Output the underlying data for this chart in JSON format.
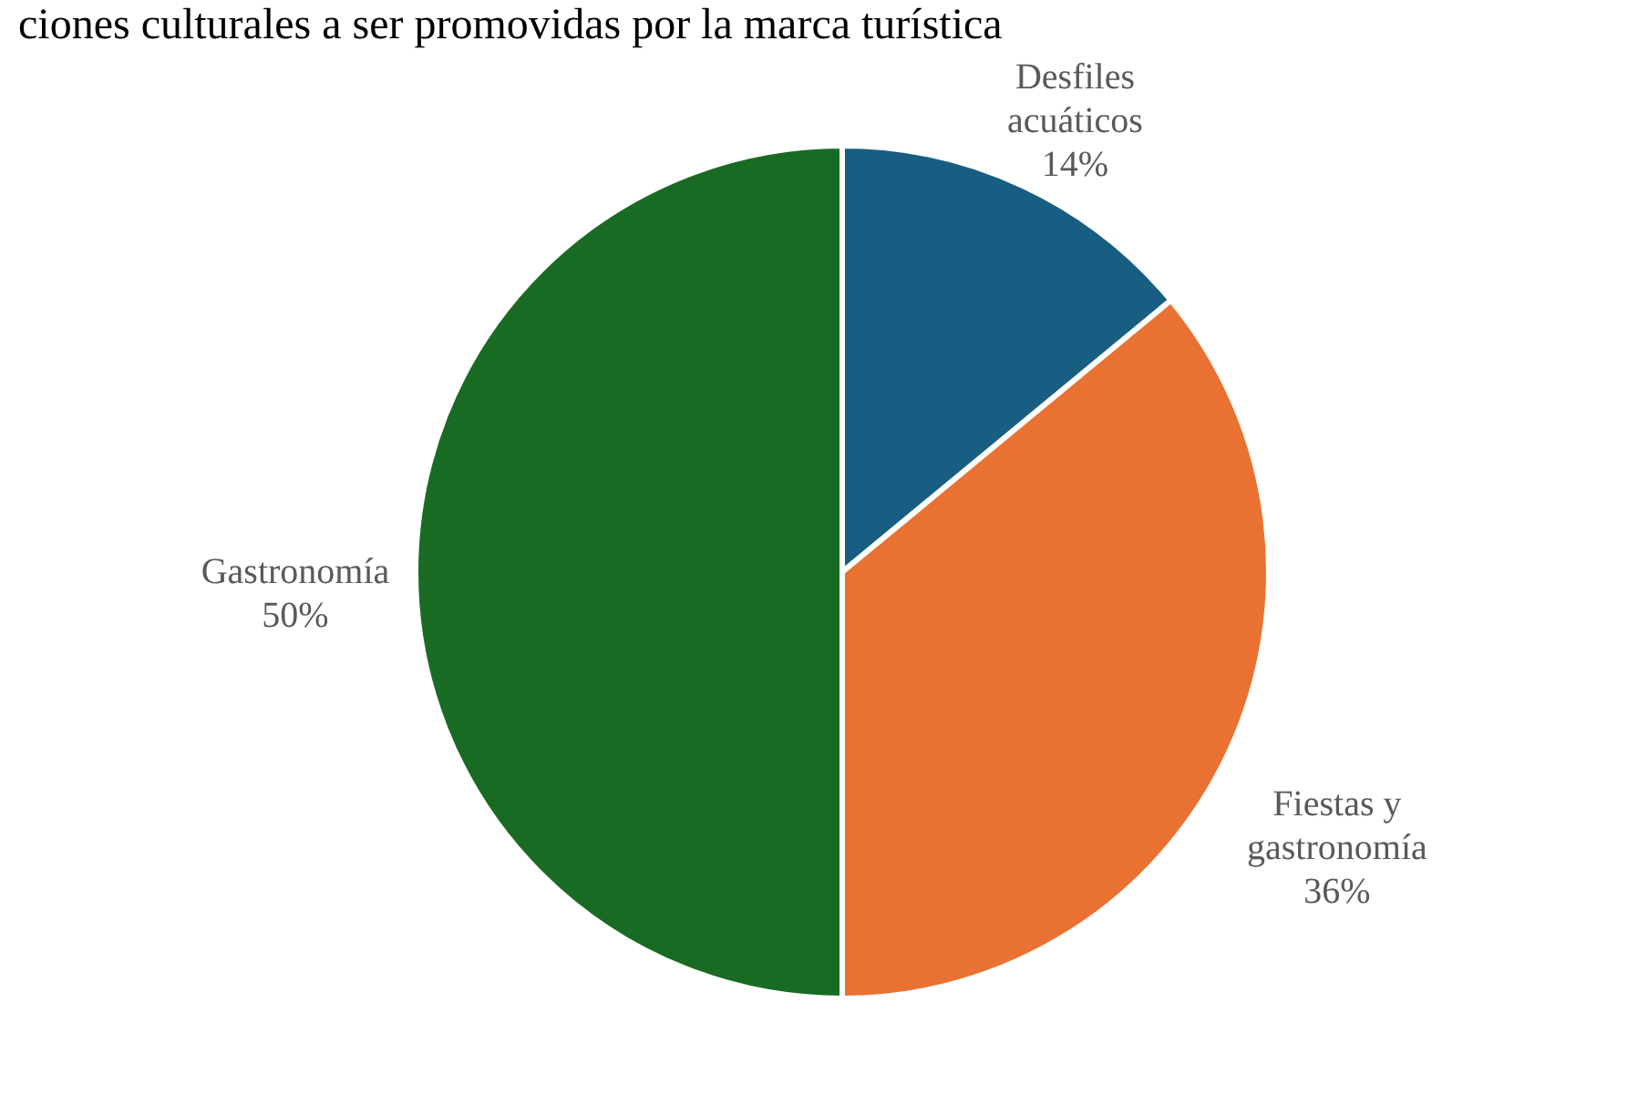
{
  "chart_data": {
    "type": "pie",
    "title": "ciones culturales a ser promovidas por la marca turística",
    "categories": [
      "Desfiles acuáticos",
      "Fiestas y gastronomía",
      "Gastronomía"
    ],
    "values": [
      14,
      36,
      50
    ],
    "colors": [
      "#175e82",
      "#e97132",
      "#196b24"
    ],
    "value_labels": [
      "14%",
      "36%",
      "50%"
    ]
  }
}
